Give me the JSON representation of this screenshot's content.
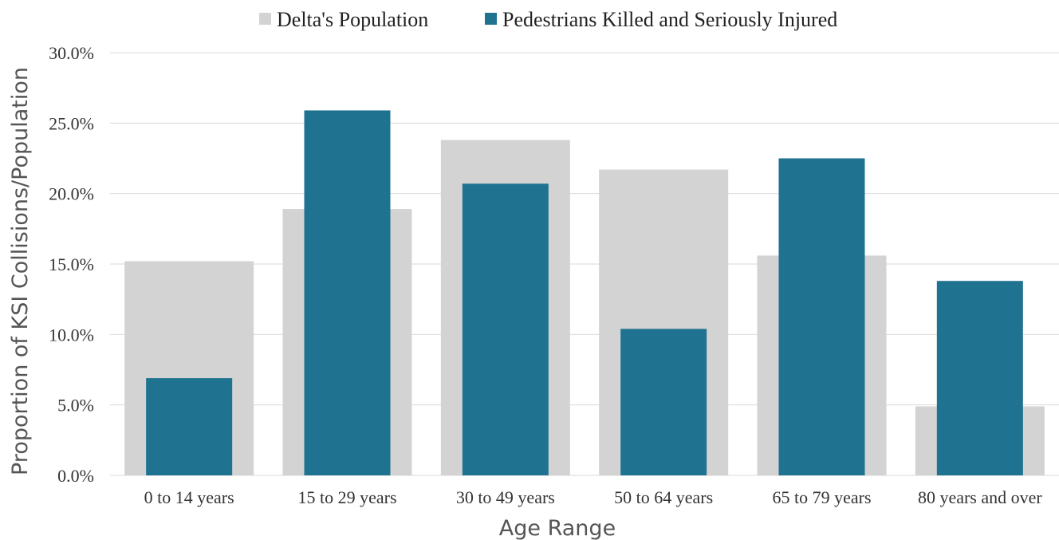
{
  "chart_data": {
    "type": "bar",
    "categories": [
      "0 to 14 years",
      "15 to 29 years",
      "30 to 49 years",
      "50 to 64 years",
      "65 to 79 years",
      "80 years and over"
    ],
    "series": [
      {
        "name": "Delta's Population",
        "values": [
          15.2,
          18.9,
          23.8,
          21.7,
          15.6,
          4.9
        ],
        "color": "#d3d3d3"
      },
      {
        "name": "Pedestrians Killed and Seriously Injured",
        "values": [
          6.9,
          25.9,
          20.7,
          10.4,
          22.5,
          13.8
        ],
        "color": "#1f7390"
      }
    ],
    "xlabel": "Age Range",
    "ylabel": "Proportion of KSI Collisions/Population",
    "ylim": [
      0,
      30
    ],
    "yticks": [
      "0.0%",
      "5.0%",
      "10.0%",
      "15.0%",
      "20.0%",
      "25.0%",
      "30.0%"
    ],
    "ytick_values": [
      0,
      5,
      10,
      15,
      20,
      25,
      30
    ],
    "grid": true,
    "gridline_color": "#d9d9d9",
    "legend_position": "top"
  }
}
